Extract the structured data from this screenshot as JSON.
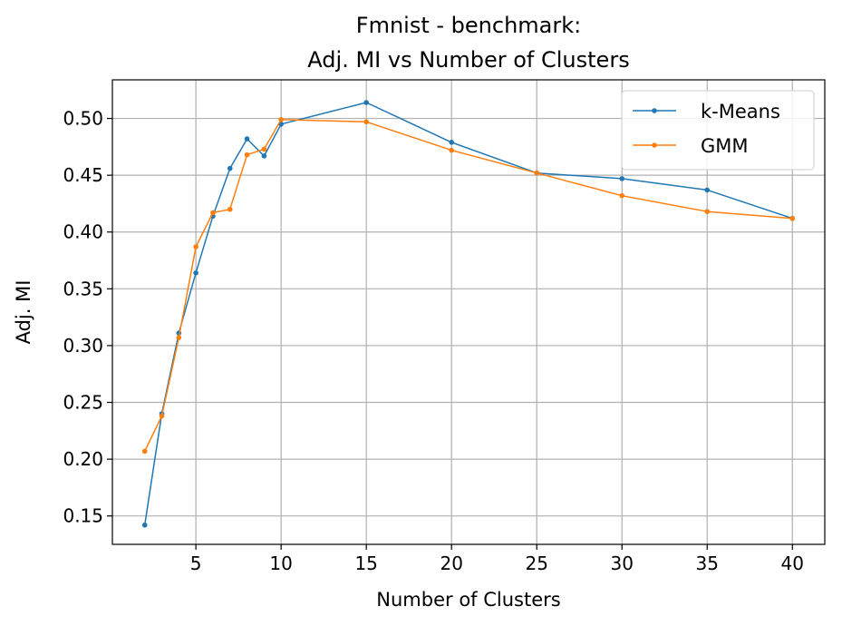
{
  "chart_data": {
    "type": "line",
    "title_lines": [
      "Fmnist - benchmark:",
      "Adj. MI vs Number of Clusters"
    ],
    "xlabel": "Number of Clusters",
    "ylabel": "Adj. MI",
    "xlim": [
      0.1,
      41.9
    ],
    "ylim": [
      0.125,
      0.534
    ],
    "x_ticks": [
      5,
      10,
      15,
      20,
      25,
      30,
      35,
      40
    ],
    "y_ticks": [
      0.15,
      0.2,
      0.25,
      0.3,
      0.35,
      0.4,
      0.45,
      0.5
    ],
    "y_tick_labels": [
      "0.15",
      "0.20",
      "0.25",
      "0.30",
      "0.35",
      "0.40",
      "0.45",
      "0.50"
    ],
    "grid": true,
    "legend_position": "top-right",
    "series": [
      {
        "name": "k-Means",
        "color": "#1f77b4",
        "x": [
          2,
          3,
          4,
          5,
          6,
          7,
          8,
          9,
          10,
          15,
          20,
          25,
          30,
          35,
          40
        ],
        "values": [
          0.142,
          0.24,
          0.311,
          0.364,
          0.414,
          0.456,
          0.482,
          0.467,
          0.495,
          0.514,
          0.479,
          0.452,
          0.447,
          0.437,
          0.412
        ]
      },
      {
        "name": "GMM",
        "color": "#ff7f0e",
        "x": [
          2,
          3,
          4,
          5,
          6,
          7,
          8,
          9,
          10,
          15,
          20,
          25,
          30,
          35,
          40
        ],
        "values": [
          0.207,
          0.238,
          0.307,
          0.387,
          0.417,
          0.42,
          0.468,
          0.473,
          0.499,
          0.497,
          0.472,
          0.452,
          0.432,
          0.418,
          0.412
        ]
      }
    ]
  }
}
